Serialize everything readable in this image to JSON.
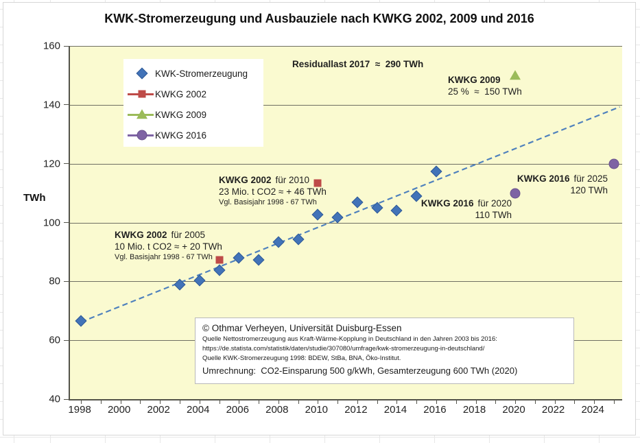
{
  "page": {
    "title": "KWK-Stromerzeugung und Ausbauziele nach KWKG 2002, 2009 und 2016"
  },
  "axes": {
    "y_unit_label": "TWh"
  },
  "legend": {
    "items": [
      {
        "label": "KWK-Stromerzeugung",
        "marker": "diamond",
        "color": "#4273b8",
        "line": false
      },
      {
        "label": "KWKG 2002",
        "marker": "square",
        "color": "#be4b48",
        "line": true
      },
      {
        "label": "KWKG 2009",
        "marker": "triangle",
        "color": "#9bbb59",
        "line": true
      },
      {
        "label": "KWKG 2016",
        "marker": "circle",
        "color": "#7e63a4",
        "line": true
      }
    ]
  },
  "chart_data": {
    "type": "scatter",
    "title": "KWK-Stromerzeugung und Ausbauziele nach KWKG 2002, 2009 und 2016",
    "xlabel": "",
    "ylabel": "TWh",
    "xlim": [
      1997.44,
      2025.42
    ],
    "ylim": [
      40,
      160
    ],
    "x_ticks": [
      1998,
      2000,
      2002,
      2004,
      2006,
      2008,
      2010,
      2012,
      2014,
      2016,
      2018,
      2020,
      2022,
      2024
    ],
    "y_ticks": [
      40,
      60,
      80,
      100,
      120,
      140,
      160
    ],
    "grid": "horizontal",
    "legend_position": "upper-left-inside",
    "plot_bg": "#fafad0",
    "series": [
      {
        "name": "KWK-Stromerzeugung",
        "marker": "diamond",
        "color": "#4273b8",
        "points": [
          [
            1998,
            66.6
          ],
          [
            2003,
            78.8
          ],
          [
            2004,
            80.4
          ],
          [
            2005,
            83.8
          ],
          [
            2006,
            87.9
          ],
          [
            2007,
            87.3
          ],
          [
            2008,
            93.4
          ],
          [
            2009,
            94.3
          ],
          [
            2010,
            102.7
          ],
          [
            2011,
            101.7
          ],
          [
            2012,
            106.8
          ],
          [
            2013,
            104.9
          ],
          [
            2014,
            104.0
          ],
          [
            2015,
            108.9
          ],
          [
            2016,
            117.4
          ]
        ]
      },
      {
        "name": "KWKG 2002",
        "marker": "square",
        "color": "#be4b48",
        "points": [
          [
            2005,
            87.3
          ],
          [
            2010,
            113.4
          ]
        ]
      },
      {
        "name": "KWKG 2009",
        "marker": "triangle",
        "color": "#9bbb59",
        "points": [
          [
            2020,
            150
          ]
        ]
      },
      {
        "name": "KWKG 2016",
        "marker": "circle",
        "color": "#7e63a4",
        "points": [
          [
            2020,
            110
          ],
          [
            2025,
            120
          ]
        ]
      }
    ],
    "trendline": {
      "style": "dashed",
      "color": "#4f81bd",
      "from": [
        1998,
        66.2
      ],
      "to": [
        2025.3,
        139.3
      ]
    }
  },
  "annotations": {
    "residuallast": {
      "text": "Residuallast 2017  ≈  290 TWh"
    },
    "kwkg2009": {
      "title": "KWKG 2009",
      "value": "25 %  ≈  150 TWh"
    },
    "kwkg2002_2010": {
      "law": "KWKG 2002",
      "target": "für 2010",
      "line2": "23 Mio. t CO2 ≈ + 46 TWh",
      "line3": "Vgl. Basisjahr 1998 - 67 TWh"
    },
    "kwkg2002_2005": {
      "law": "KWKG 2002",
      "target": "für 2005",
      "line2": "10 Mio. t CO2 ≈ + 20 TWh",
      "line3": "Vgl. Basisjahr 1998 - 67 TWh"
    },
    "kwkg2016_2020": {
      "law": "KWKG 2016",
      "target": "für 2020",
      "value": "110 TWh"
    },
    "kwkg2016_2025": {
      "law": "KWKG 2016",
      "target": "für 2025",
      "value": "120 TWh"
    }
  },
  "source_box": {
    "line1": "© Othmar Verheyen, Universität Duisburg-Essen",
    "line2": "Quelle Nettostromerzeugung aus Kraft-Wärme-Kopplung in Deutschland in den Jahren 2003 bis 2016:",
    "line3": "https://de.statista.com/statistik/daten/studie/307080/umfrage/kwk-stromerzeugung-in-deutschland/",
    "line4": "Quelle KWK-Stromerzeugung 1998: BDEW, StBa, BNA, Öko-Institut.",
    "line5": "Umrechnung:  CO2-Einsparung 500 g/kWh, Gesamterzeugung 600 TWh (2020)"
  },
  "colors": {
    "series_blue": "#4273b8",
    "series_red": "#be4b48",
    "series_green": "#9bbb59",
    "series_purple": "#7e63a4",
    "trendline_blue": "#4f81bd",
    "plot_background": "#fafad0",
    "gridline": "#6e6e62",
    "axis": "#53534a"
  }
}
